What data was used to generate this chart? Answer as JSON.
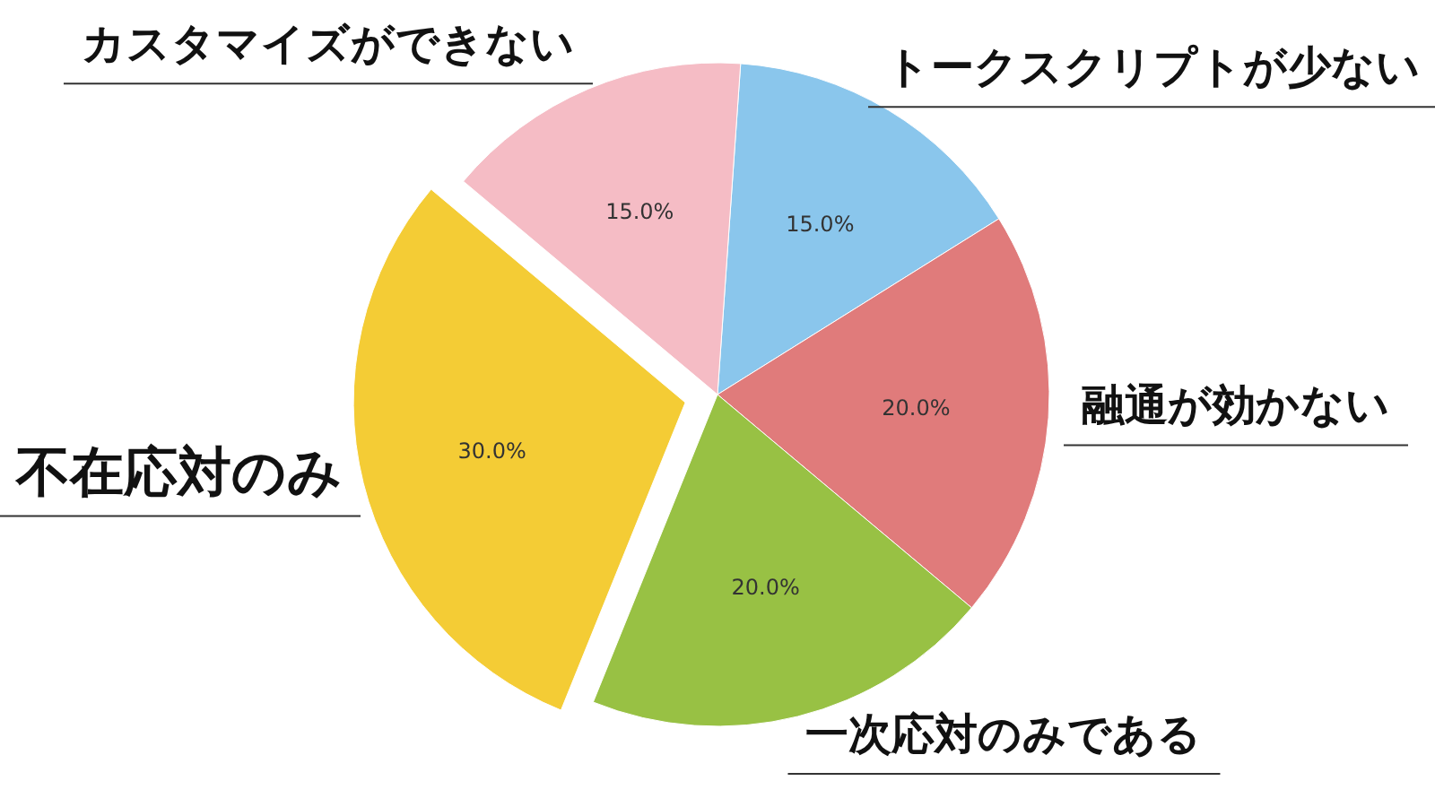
{
  "chart_data": {
    "type": "pie",
    "categories": [
      "トークスクリプトが少ない",
      "融通が効かない",
      "一次応対のみである",
      "不在応対のみ",
      "カスタマイズができない"
    ],
    "values": [
      15,
      20,
      20,
      30,
      15
    ],
    "value_labels": [
      "15.0%",
      "20.0%",
      "20.0%",
      "30.0%",
      "15.0%"
    ],
    "colors": [
      "#8ac6ec",
      "#e07b7b",
      "#98c144",
      "#f4cc35",
      "#f5bcc5"
    ]
  }
}
